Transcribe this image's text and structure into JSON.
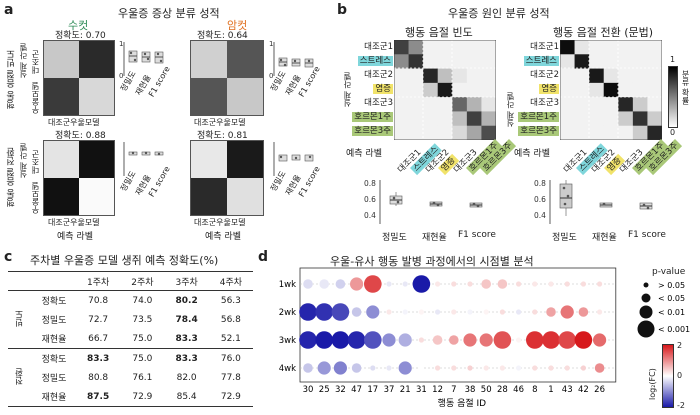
{
  "panel_a": {
    "label": "a",
    "title": "우울증 증상 분류 성적",
    "male": "수컷",
    "female": "암컷",
    "row1_label": "행동 음절 빈도",
    "row2_label": "행동 음절 전환",
    "true_label": "실제 라벨",
    "true_classes": [
      "대조군",
      "우울모델"
    ],
    "pred_classes": [
      "대조군",
      "우울모델"
    ],
    "pred_axis": "예측 라벨",
    "metrics": [
      "정밀도",
      "재현율",
      "F1 score"
    ],
    "ytick_0": "0",
    "ytick_1": "1",
    "accuracies": [
      "정확도: 0.70",
      "정확도: 0.64",
      "정확도: 0.88",
      "정확도: 0.81"
    ]
  },
  "panel_b": {
    "label": "b",
    "title": "우울증 원인 분류 성적",
    "left_title": "행동 음절 빈도",
    "right_title": "행동 음절 전환 (문법)",
    "true_label": "실제 라벨",
    "pred_axis": "예측 라벨",
    "classes": [
      "대조군1",
      "스트레스",
      "대조군2",
      "염증",
      "대조군3",
      "호르몬1주",
      "호르몬3주"
    ],
    "colorbar_label": "분류 확률",
    "cb_max": "1",
    "cb_min": "0",
    "metrics": [
      "정밀도",
      "재현율",
      "F1 score"
    ],
    "yticks": [
      "0.8",
      "0.6",
      "0.4"
    ]
  },
  "panel_c": {
    "label": "c",
    "title": "주차별 우울증 모델 생쥐 예측 정확도(%)",
    "columns": [
      "",
      "",
      "1주차",
      "2주차",
      "3주차",
      "4주차"
    ],
    "groups": [
      {
        "name": "빈도",
        "rows": [
          {
            "metric": "정확도",
            "values": [
              "70.8",
              "74.0",
              "80.2",
              "56.3"
            ],
            "bold": [
              false,
              false,
              true,
              false
            ]
          },
          {
            "metric": "정밀도",
            "values": [
              "72.7",
              "73.5",
              "78.4",
              "56.8"
            ],
            "bold": [
              false,
              false,
              true,
              false
            ]
          },
          {
            "metric": "재현율",
            "values": [
              "66.7",
              "75.0",
              "83.3",
              "52.1"
            ],
            "bold": [
              false,
              false,
              true,
              false
            ]
          }
        ]
      },
      {
        "name": "전환",
        "rows": [
          {
            "metric": "정확도",
            "values": [
              "83.3",
              "75.0",
              "83.3",
              "76.0"
            ],
            "bold": [
              true,
              false,
              true,
              false
            ]
          },
          {
            "metric": "정밀도",
            "values": [
              "80.8",
              "76.1",
              "82.0",
              "77.8"
            ],
            "bold": [
              false,
              false,
              false,
              false
            ]
          },
          {
            "metric": "재현율",
            "values": [
              "87.5",
              "72.9",
              "85.4",
              "72.9"
            ],
            "bold": [
              true,
              false,
              false,
              false
            ]
          }
        ]
      }
    ]
  },
  "panel_d": {
    "label": "d",
    "title": "우울-유사 행동 발병 과정에서의 시점별 분석",
    "xlabel": "행동 음절 ID",
    "weeks": [
      "1wk",
      "2wk",
      "3wk",
      "4wk"
    ],
    "pvalue_title": "p-value",
    "pvalue_levels": [
      "> 0.05",
      "< 0.05",
      "< 0.01",
      "< 0.001"
    ],
    "colorbar_title": "log₂(FC)",
    "cb_ticks": [
      "2",
      "0",
      "-2"
    ],
    "chart_data": {
      "type": "scatter",
      "x": [
        "30",
        "25",
        "32",
        "47",
        "17",
        "37",
        "21",
        "31",
        "12",
        "7",
        "38",
        "50",
        "28",
        "46",
        "8",
        "1",
        "43",
        "42",
        "26"
      ],
      "y": [
        "1wk",
        "2wk",
        "3wk",
        "4wk"
      ],
      "log2fc": [
        [
          -0.3,
          -0.2,
          -0.4,
          0.9,
          1.6,
          -0.2,
          -0.2,
          -2.0,
          0.2,
          0.3,
          0.3,
          0.5,
          0.5,
          0.3,
          0.2,
          0.2,
          0.3,
          0.3,
          0.3
        ],
        [
          -1.9,
          -1.8,
          -1.6,
          -0.5,
          -1.0,
          0.2,
          -0.1,
          0.1,
          -0.2,
          0.2,
          -0.1,
          0.1,
          0.3,
          -0.2,
          0.3,
          0.8,
          1.2,
          0.9,
          0.2
        ],
        [
          -1.9,
          -2.2,
          -2.2,
          -1.9,
          -1.5,
          -1.0,
          -0.7,
          0.3,
          0.5,
          0.8,
          1.2,
          1.2,
          1.5,
          0.1,
          1.8,
          1.8,
          1.6,
          2.0,
          1.3
        ],
        [
          -0.5,
          -0.9,
          -1.1,
          -0.5,
          -0.3,
          -0.2,
          -1.0,
          0.0,
          0.3,
          0.3,
          0.4,
          0.2,
          0.2,
          -0.1,
          0.3,
          0.3,
          0.3,
          0.4,
          1.0
        ]
      ],
      "p_level": [
        [
          1,
          1,
          1,
          2,
          3,
          0,
          0,
          3,
          0,
          0,
          0,
          1,
          1,
          0,
          0,
          0,
          0,
          0,
          0
        ],
        [
          3,
          3,
          3,
          1,
          2,
          0,
          0,
          0,
          0,
          0,
          0,
          0,
          0,
          0,
          0,
          1,
          2,
          1,
          0
        ],
        [
          3,
          3,
          3,
          3,
          3,
          2,
          2,
          0,
          1,
          1,
          2,
          2,
          3,
          0,
          3,
          3,
          3,
          3,
          2
        ],
        [
          1,
          2,
          2,
          1,
          0,
          0,
          2,
          0,
          0,
          0,
          0,
          0,
          0,
          0,
          0,
          0,
          0,
          0,
          1
        ]
      ]
    }
  }
}
